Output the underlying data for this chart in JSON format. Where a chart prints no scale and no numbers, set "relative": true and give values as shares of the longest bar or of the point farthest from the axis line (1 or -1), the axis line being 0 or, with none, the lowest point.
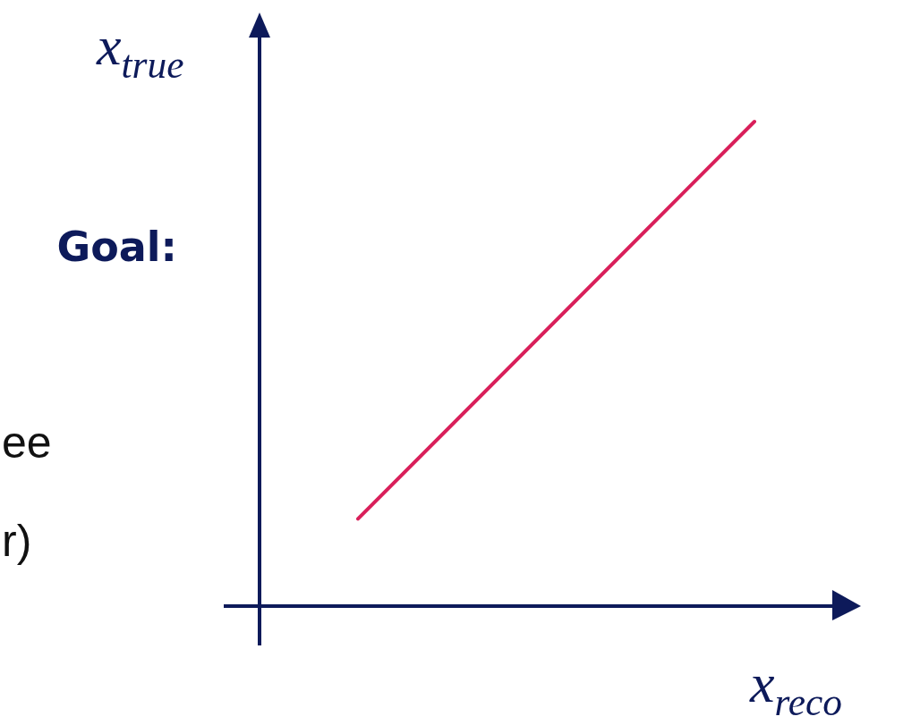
{
  "chart_data": {
    "type": "line",
    "relative": true,
    "categories": [
      null,
      null
    ],
    "series": [
      {
        "color": "#d91f5a",
        "values": [
          0.18,
          1
        ]
      }
    ],
    "xlabel": "x$_{reco}$",
    "ylabel": "x$_{true}$",
    "annotations": [
      "Goal:",
      "ee",
      "r)"
    ]
  }
}
